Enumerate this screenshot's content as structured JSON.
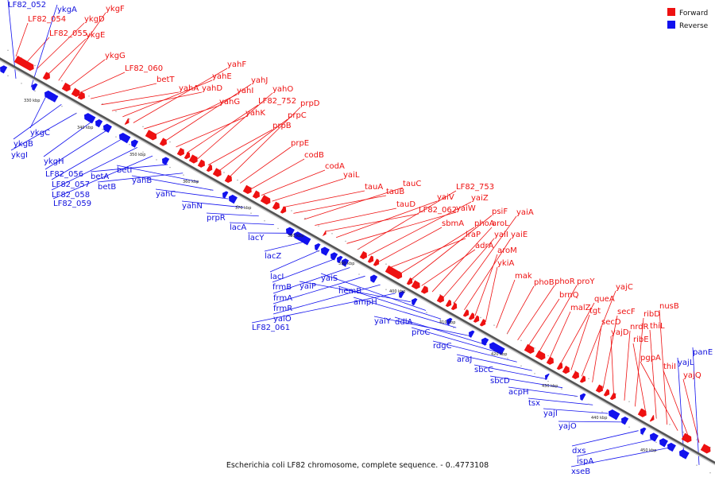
{
  "caption": "Escherichia coli LF82 chromosome, complete sequence. - 0..4773108",
  "legend": {
    "forward": {
      "label": "Forward",
      "color": "#ee1111"
    },
    "reverse": {
      "label": "Reverse",
      "color": "#1111ee"
    }
  },
  "ticks": [
    "330 kbp",
    "340 kbp",
    "350 kbp",
    "360 kbp",
    "370 kbp",
    "380 kbp",
    "390 kbp",
    "400 kbp",
    "410 kbp",
    "420 kbp",
    "430 kbp",
    "440 kbp",
    "450 kbp"
  ],
  "forward_labels": [
    "LF82_054",
    "LF82_055",
    "ykgD",
    "ykgE",
    "ykgF",
    "ykgG",
    "LF82_060",
    "betT",
    "yahA",
    "yahD",
    "yahE",
    "yahF",
    "yahG",
    "yahI",
    "yahJ",
    "yahK",
    "LF82_752",
    "yahO",
    "prpB",
    "prpC",
    "prpD",
    "prpE",
    "codB",
    "codA",
    "yaiL",
    "tauA",
    "tauB",
    "tauC",
    "tauD",
    "LF82_062",
    "yaiV",
    "yaiW",
    "LF82_753",
    "yaiZ",
    "sbmA",
    "iraP",
    "phoA",
    "psiF",
    "adrA",
    "aroL",
    "yaiI",
    "yaiA",
    "yaiE",
    "aroM",
    "ykiA",
    "mak",
    "phoB",
    "phoR",
    "brnQ",
    "proY",
    "malZ",
    "queA",
    "tgt",
    "yajC",
    "secD",
    "secF",
    "yajD",
    "nrdR",
    "ribD",
    "ribE",
    "thiL",
    "nusB",
    "pgpA",
    "thiI",
    "yajQ"
  ],
  "reverse_labels": [
    "LF82_052",
    "ykgA",
    "ykgC",
    "ykgB",
    "ykgI",
    "ykgH",
    "LF82_056",
    "LF82_057",
    "LF82_058",
    "LF82_059",
    "betA",
    "betB",
    "betI",
    "yahB",
    "yahC",
    "yahN",
    "prpR",
    "lacA",
    "lacY",
    "lacZ",
    "lacI",
    "frmB",
    "frmA",
    "frmR",
    "yaiO",
    "LF82_061",
    "yaiP",
    "yaiS",
    "hemB",
    "ampH",
    "yaiY",
    "ddlA",
    "proC",
    "rdgC",
    "araJ",
    "sbcC",
    "sbcD",
    "acpH",
    "tsx",
    "yajI",
    "yajO",
    "dxs",
    "ispA",
    "xseB",
    "yajL",
    "panE"
  ]
}
